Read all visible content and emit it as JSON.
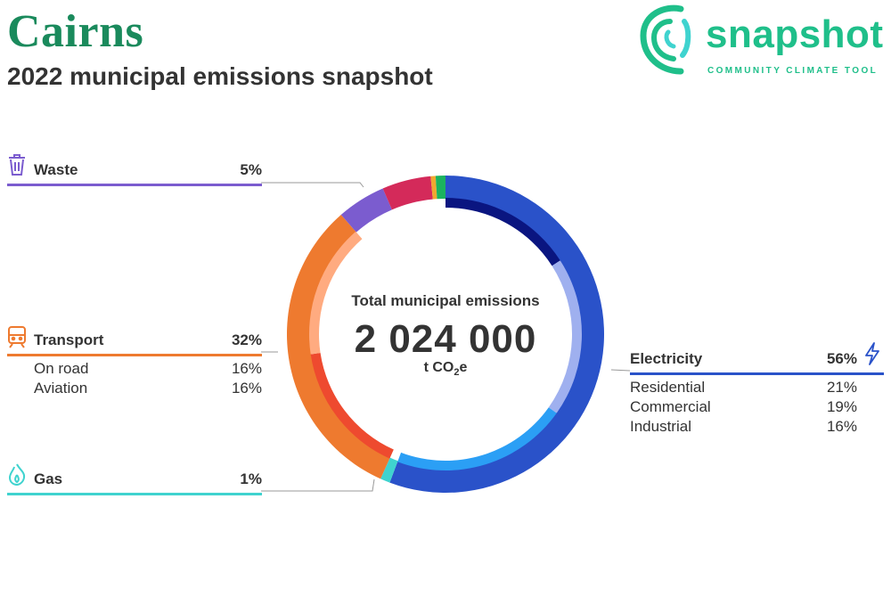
{
  "header": {
    "title": "Cairns",
    "subtitle": "2022 municipal emissions snapshot"
  },
  "logo": {
    "word": "snapshot",
    "tagline": "COMMUNITY CLIMATE TOOL"
  },
  "center": {
    "caption": "Total municipal emissions",
    "total": "2 024 000",
    "unit_prefix": "t CO",
    "unit_sub": "2",
    "unit_suffix": "e"
  },
  "groups": {
    "waste": {
      "label": "Waste",
      "pct": "5%",
      "color": "#7b5ccf",
      "icon": "trash-bin-icon"
    },
    "transport": {
      "label": "Transport",
      "pct": "32%",
      "color": "#ee7a2f",
      "icon": "train-icon",
      "items": [
        {
          "label": "On road",
          "pct": "16%"
        },
        {
          "label": "Aviation",
          "pct": "16%"
        }
      ]
    },
    "gas": {
      "label": "Gas",
      "pct": "1%",
      "color": "#3fd3cf",
      "icon": "flame-icon"
    },
    "electricity": {
      "label": "Electricity",
      "pct": "56%",
      "color": "#2a52c9",
      "icon": "lightning-icon",
      "items": [
        {
          "label": "Residential",
          "pct": "21%"
        },
        {
          "label": "Commercial",
          "pct": "19%"
        },
        {
          "label": "Industrial",
          "pct": "16%"
        }
      ]
    }
  },
  "chart_data": {
    "type": "pie",
    "title": "Total municipal emissions",
    "total": 2024000,
    "unit": "t CO2e",
    "outer_ring": [
      {
        "name": "Electricity",
        "value": 56,
        "color": "#2a52c9"
      },
      {
        "name": "Gas",
        "value": 1,
        "color": "#3fd3cf"
      },
      {
        "name": "Transport",
        "value": 32,
        "color": "#ee7a2f"
      },
      {
        "name": "Waste",
        "value": 5,
        "color": "#7b5ccf"
      },
      {
        "name": "",
        "value": 5,
        "color": "#d42a5a"
      },
      {
        "name": "",
        "value": 0.5,
        "color": "#f0a830"
      },
      {
        "name": "",
        "value": 1,
        "color": "#1bb35f"
      }
    ],
    "inner_ring": [
      {
        "name": "Industrial",
        "parent": "Electricity",
        "value": 16,
        "color": "#0a1580"
      },
      {
        "name": "Commercial",
        "parent": "Electricity",
        "value": 19,
        "color": "#9fb0ef"
      },
      {
        "name": "Residential",
        "parent": "Electricity",
        "value": 21,
        "color": "#2b9ff5"
      },
      {
        "name": "Aviation",
        "parent": "Transport",
        "value": 16,
        "color": "#ee4a2f"
      },
      {
        "name": "On road",
        "parent": "Transport",
        "value": 16,
        "color": "#ffab80"
      }
    ]
  }
}
